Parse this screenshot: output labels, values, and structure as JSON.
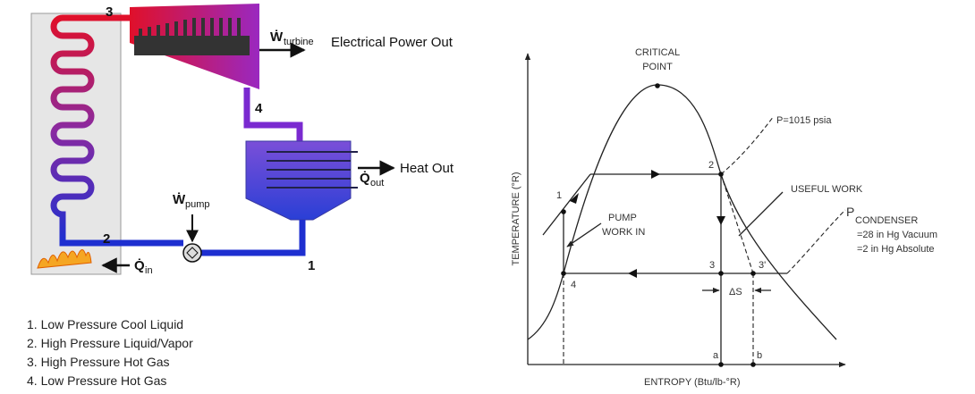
{
  "cycle_diagram": {
    "state_labels": [
      "1",
      "2",
      "3",
      "4"
    ],
    "turbine": {
      "symbol": "Ẇ",
      "subscript": "turbine",
      "caption": "Electrical Power Out"
    },
    "condenser": {
      "symbol": "Q̇",
      "subscript": "out",
      "caption": "Heat Out"
    },
    "pump": {
      "symbol": "Ẇ",
      "subscript": "pump"
    },
    "boiler": {
      "symbol": "Q̇",
      "subscript": "in"
    },
    "legend": [
      "1. Low Pressure Cool Liquid",
      "2. High Pressure Liquid/Vapor",
      "3. High Pressure Hot Gas",
      "4. Low Pressure Hot Gas"
    ]
  },
  "ts_diagram": {
    "critical_point": [
      "CRITICAL",
      "POINT"
    ],
    "pressure_label": "P=1015 psia",
    "useful_work": "USEFUL WORK",
    "condenser_pressure": {
      "symbol": "P",
      "subscript": "CONDENSER",
      "lines": [
        "=28 in Hg Vacuum",
        "=2 in Hg Absolute"
      ]
    },
    "pump_work": [
      "PUMP",
      "WORK IN"
    ],
    "points": [
      "1",
      "2",
      "3",
      "3'",
      "4"
    ],
    "delta_s": "ΔS",
    "axis_points": [
      "a",
      "b"
    ],
    "y_axis_label": "TEMPERATURE (°R)",
    "x_axis_label": "ENTROPY (Btu/lb-°R)"
  }
}
